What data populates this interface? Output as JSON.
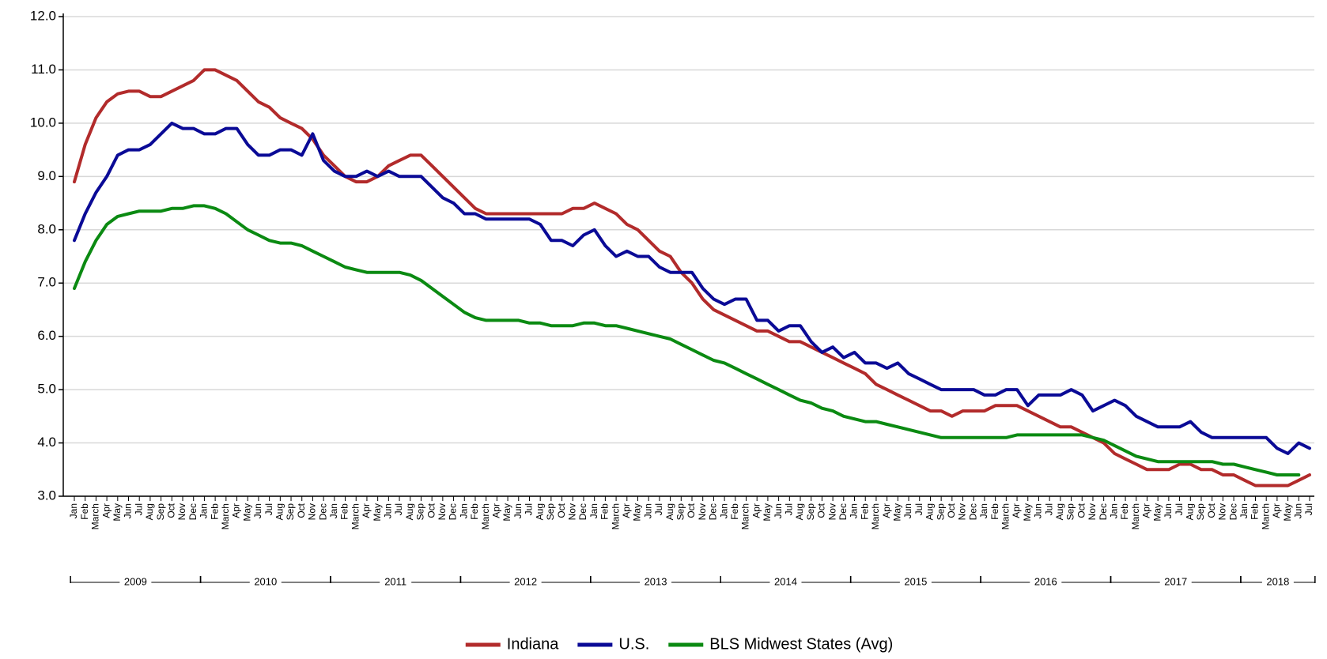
{
  "chart_data": {
    "type": "line",
    "categories": [
      "Jan",
      "Feb",
      "March",
      "Apr",
      "May",
      "Jun",
      "Jul",
      "Aug",
      "Sep",
      "Oct",
      "Nov",
      "Dec",
      "Jan",
      "Feb",
      "March",
      "Apr",
      "May",
      "Jun",
      "Jul",
      "Aug",
      "Sep",
      "Oct",
      "Nov",
      "Dec",
      "Jan",
      "Feb",
      "March",
      "Apr",
      "May",
      "Jun",
      "Jul",
      "Aug",
      "Sep",
      "Oct",
      "Nov",
      "Dec",
      "Jan",
      "Feb",
      "March",
      "Apr",
      "May",
      "Jun",
      "Jul",
      "Aug",
      "Sep",
      "Oct",
      "Nov",
      "Dec",
      "Jan",
      "Feb",
      "March",
      "Apr",
      "May",
      "Jun",
      "Jul",
      "Aug",
      "Sep",
      "Oct",
      "Nov",
      "Dec",
      "Jan",
      "Feb",
      "March",
      "Apr",
      "May",
      "Jun",
      "Jul",
      "Aug",
      "Sep",
      "Oct",
      "Nov",
      "Dec",
      "Jan",
      "Feb",
      "March",
      "Apr",
      "May",
      "Jun",
      "Jul",
      "Aug",
      "Sep",
      "Oct",
      "Nov",
      "Dec",
      "Jan",
      "Feb",
      "March",
      "Apr",
      "May",
      "Jun",
      "Jul",
      "Aug",
      "Sep",
      "Oct",
      "Nov",
      "Dec",
      "Jan",
      "Feb",
      "March",
      "Apr",
      "May",
      "Jun",
      "Jul",
      "Aug",
      "Sep",
      "Oct",
      "Nov",
      "Dec",
      "Jan",
      "Feb",
      "March",
      "Apr",
      "May",
      "Jun",
      "Jul"
    ],
    "years": [
      "2009",
      "2010",
      "2011",
      "2012",
      "2013",
      "2014",
      "2015",
      "2016",
      "2017",
      "2018"
    ],
    "series": [
      {
        "name": "Indiana",
        "color": "#b22b2b",
        "values": [
          8.9,
          9.6,
          10.1,
          10.4,
          10.55,
          10.6,
          10.6,
          10.5,
          10.5,
          10.6,
          10.7,
          10.8,
          11.0,
          11.0,
          10.9,
          10.8,
          10.6,
          10.4,
          10.3,
          10.1,
          10.0,
          9.9,
          9.7,
          9.4,
          9.2,
          9.0,
          8.9,
          8.9,
          9.0,
          9.2,
          9.3,
          9.4,
          9.4,
          9.2,
          9.0,
          8.8,
          8.6,
          8.4,
          8.3,
          8.3,
          8.3,
          8.3,
          8.3,
          8.3,
          8.3,
          8.3,
          8.4,
          8.4,
          8.5,
          8.4,
          8.3,
          8.1,
          8.0,
          7.8,
          7.6,
          7.5,
          7.2,
          7.0,
          6.7,
          6.5,
          6.4,
          6.3,
          6.2,
          6.1,
          6.1,
          6.0,
          5.9,
          5.9,
          5.8,
          5.7,
          5.6,
          5.5,
          5.4,
          5.3,
          5.1,
          5.0,
          4.9,
          4.8,
          4.7,
          4.6,
          4.6,
          4.5,
          4.6,
          4.6,
          4.6,
          4.7,
          4.7,
          4.7,
          4.6,
          4.5,
          4.4,
          4.3,
          4.3,
          4.2,
          4.1,
          4.0,
          3.8,
          3.7,
          3.6,
          3.5,
          3.5,
          3.5,
          3.6,
          3.6,
          3.5,
          3.5,
          3.4,
          3.4,
          3.3,
          3.2,
          3.2,
          3.2,
          3.2,
          3.3,
          3.4
        ]
      },
      {
        "name": "U.S.",
        "color": "#0a0a96",
        "values": [
          7.8,
          8.3,
          8.7,
          9.0,
          9.4,
          9.5,
          9.5,
          9.6,
          9.8,
          10.0,
          9.9,
          9.9,
          9.8,
          9.8,
          9.9,
          9.9,
          9.6,
          9.4,
          9.4,
          9.5,
          9.5,
          9.4,
          9.8,
          9.3,
          9.1,
          9.0,
          9.0,
          9.1,
          9.0,
          9.1,
          9.0,
          9.0,
          9.0,
          8.8,
          8.6,
          8.5,
          8.3,
          8.3,
          8.2,
          8.2,
          8.2,
          8.2,
          8.2,
          8.1,
          7.8,
          7.8,
          7.7,
          7.9,
          8.0,
          7.7,
          7.5,
          7.6,
          7.5,
          7.5,
          7.3,
          7.2,
          7.2,
          7.2,
          6.9,
          6.7,
          6.6,
          6.7,
          6.7,
          6.3,
          6.3,
          6.1,
          6.2,
          6.2,
          5.9,
          5.7,
          5.8,
          5.6,
          5.7,
          5.5,
          5.5,
          5.4,
          5.5,
          5.3,
          5.2,
          5.1,
          5.0,
          5.0,
          5.0,
          5.0,
          4.9,
          4.9,
          5.0,
          5.0,
          4.7,
          4.9,
          4.9,
          4.9,
          5.0,
          4.9,
          4.6,
          4.7,
          4.8,
          4.7,
          4.5,
          4.4,
          4.3,
          4.3,
          4.3,
          4.4,
          4.2,
          4.1,
          4.1,
          4.1,
          4.1,
          4.1,
          4.1,
          3.9,
          3.8,
          4.0,
          3.9
        ]
      },
      {
        "name": "BLS Midwest States (Avg)",
        "color": "#0b8a12",
        "values": [
          6.9,
          7.4,
          7.8,
          8.1,
          8.25,
          8.3,
          8.35,
          8.35,
          8.35,
          8.4,
          8.4,
          8.45,
          8.45,
          8.4,
          8.3,
          8.15,
          8.0,
          7.9,
          7.8,
          7.75,
          7.75,
          7.7,
          7.6,
          7.5,
          7.4,
          7.3,
          7.25,
          7.2,
          7.2,
          7.2,
          7.2,
          7.15,
          7.05,
          6.9,
          6.75,
          6.6,
          6.45,
          6.35,
          6.3,
          6.3,
          6.3,
          6.3,
          6.25,
          6.25,
          6.2,
          6.2,
          6.2,
          6.25,
          6.25,
          6.2,
          6.2,
          6.15,
          6.1,
          6.05,
          6.0,
          5.95,
          5.85,
          5.75,
          5.65,
          5.55,
          5.5,
          5.4,
          5.3,
          5.2,
          5.1,
          5.0,
          4.9,
          4.8,
          4.75,
          4.65,
          4.6,
          4.5,
          4.45,
          4.4,
          4.4,
          4.35,
          4.3,
          4.25,
          4.2,
          4.15,
          4.1,
          4.1,
          4.1,
          4.1,
          4.1,
          4.1,
          4.1,
          4.15,
          4.15,
          4.15,
          4.15,
          4.15,
          4.15,
          4.15,
          4.1,
          4.05,
          3.95,
          3.85,
          3.75,
          3.7,
          3.65,
          3.65,
          3.65,
          3.65,
          3.65,
          3.65,
          3.6,
          3.6,
          3.55,
          3.5,
          3.45,
          3.4,
          3.4,
          3.4,
          null
        ]
      }
    ],
    "ylim": [
      3,
      12
    ],
    "yticks": [
      {
        "value": 3,
        "label": "3.0"
      },
      {
        "value": 4,
        "label": "4.0"
      },
      {
        "value": 5,
        "label": "5.0"
      },
      {
        "value": 6,
        "label": "6.0"
      },
      {
        "value": 7,
        "label": "7.0"
      },
      {
        "value": 8,
        "label": "8.0"
      },
      {
        "value": 9,
        "label": "9.0"
      },
      {
        "value": 10,
        "label": "10.0"
      },
      {
        "value": 11,
        "label": "11.0"
      },
      {
        "value": 12,
        "label": "12.0"
      }
    ],
    "grid": true
  }
}
